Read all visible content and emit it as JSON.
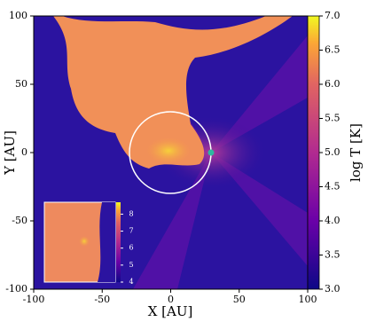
{
  "chart_data": {
    "type": "heatmap",
    "xlabel": "X [AU]",
    "ylabel": "Y [AU]",
    "xlim": [
      -100,
      100
    ],
    "ylim": [
      -100,
      100
    ],
    "xticks": [
      -100,
      -50,
      0,
      50,
      100
    ],
    "yticks": [
      -100,
      -50,
      0,
      50,
      100
    ],
    "colorbar": {
      "label": "log T [K]",
      "clim": [
        3.0,
        7.0
      ],
      "ticks": [
        {
          "value": 3,
          "label": "3.0"
        },
        {
          "value": 3.5,
          "label": "3.5"
        },
        {
          "value": 4,
          "label": "4.0"
        },
        {
          "value": 4.5,
          "label": "4.5"
        },
        {
          "value": 5,
          "label": "5.0"
        },
        {
          "value": 5.5,
          "label": "5.5"
        },
        {
          "value": 6,
          "label": "6.0"
        },
        {
          "value": 6.5,
          "label": "6.5"
        },
        {
          "value": 7,
          "label": "7.0"
        }
      ]
    },
    "inset_colorbar": {
      "clim": [
        4,
        8.7
      ],
      "ticks": [
        4,
        5,
        6,
        7,
        8
      ]
    }
  }
}
